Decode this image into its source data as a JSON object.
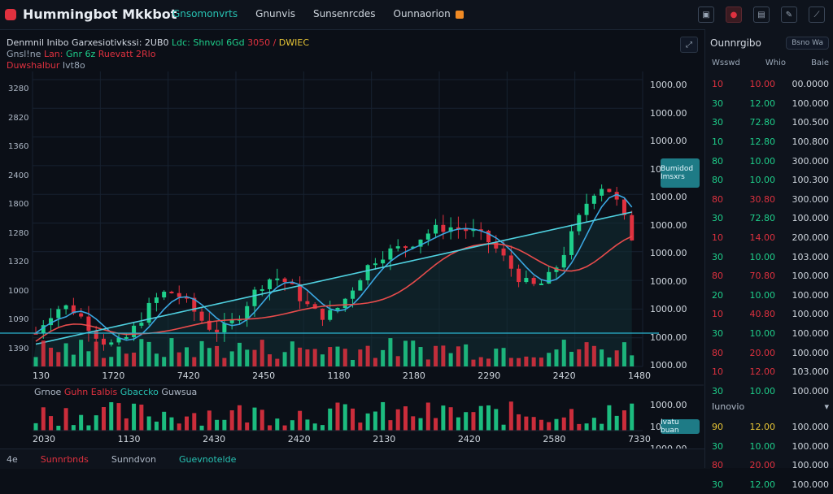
{
  "app": {
    "title": "Hummingbot Mkkbot"
  },
  "nav": {
    "tabs": [
      {
        "label": "Gnsomonvrts"
      },
      {
        "label": "Gnunvis"
      },
      {
        "label": "Sunsenrcdes"
      },
      {
        "label": "Ounnaorion"
      }
    ],
    "active_index": 0
  },
  "toolbar": {
    "icons": [
      "settings-icon",
      "record-icon",
      "layout-icon",
      "edit-icon",
      "trend-icon"
    ]
  },
  "chart": {
    "header_line1": "Denmnil Inibo Garxesiotivkssi: 2UB0",
    "header_line1_up": "Ldc: Shnvol 6Gd",
    "header_line1_dn": "3050 /",
    "header_line1_y": "DWIEC",
    "header_line2_muted": "Gnsl!ne",
    "header_line2_dn": "Lan:",
    "header_line2_teal": "Gnr 6z",
    "header_line2_y": "Ruevatt 2Rlo",
    "header_line3_dn": "Duwshalbur",
    "header_line3_muted": "Ivt8o",
    "y_axis": [
      "1000.00",
      "1000.00",
      "1000.00",
      "1000.00",
      "1000.00",
      "1000.00",
      "1000.00",
      "1000.00",
      "1000.00",
      "1000.00",
      "1000.00"
    ],
    "left_axis": [
      "3280",
      "2820",
      "1360",
      "2400",
      "1800",
      "1280",
      "1320",
      "1000",
      "1090",
      "1390"
    ],
    "x_labels": [
      "130",
      "1720",
      "7420",
      "2450",
      "1180",
      "2180",
      "2290",
      "2420",
      "1480"
    ],
    "tag_label": "Bumidod Imsxrs",
    "sub_title_muted": "Grnoe",
    "sub_title_red": "Guhn Ealbis",
    "sub_title_teal": "Gbaccko",
    "sub_title_muted2": "Guwsua",
    "sub_axis": [
      "1000.00",
      "1000.00",
      "1000.00"
    ],
    "sub_x_labels": [
      "2030",
      "1130",
      "2430",
      "2420",
      "2130",
      "2420",
      "2580",
      "7330"
    ],
    "sub_tag_label": "Ivatu buan",
    "bottom_items": [
      {
        "label": "4e",
        "cls": "muted"
      },
      {
        "label": "Sunnrbnds",
        "cls": "red"
      },
      {
        "label": "Sunndvon",
        "cls": "muted"
      },
      {
        "label": "Guevnotelde",
        "cls": "teal"
      }
    ]
  },
  "orderbook": {
    "title": "Ounnrgibo",
    "pill": "Bsno Wa",
    "columns": [
      "Wsswd",
      "Whio",
      "Baie"
    ],
    "rows": [
      {
        "side": "dn",
        "c1": "10",
        "c2": "10.00",
        "c3": "00.0000"
      },
      {
        "side": "up",
        "c1": "30",
        "c2": "12.00",
        "c3": "100.000"
      },
      {
        "side": "up",
        "c1": "30",
        "c2": "72.80",
        "c3": "100.500"
      },
      {
        "side": "up",
        "c1": "10",
        "c2": "12.80",
        "c3": "100.800"
      },
      {
        "side": "up",
        "c1": "80",
        "c2": "10.00",
        "c3": "300.000"
      },
      {
        "side": "up",
        "c1": "80",
        "c2": "10.00",
        "c3": "100.300"
      },
      {
        "side": "dn",
        "c1": "80",
        "c2": "30.80",
        "c3": "300.000"
      },
      {
        "side": "up",
        "c1": "30",
        "c2": "72.80",
        "c3": "100.000"
      },
      {
        "side": "dn",
        "c1": "10",
        "c2": "14.00",
        "c3": "200.000"
      },
      {
        "side": "up",
        "c1": "30",
        "c2": "10.00",
        "c3": "103.000"
      },
      {
        "side": "dn",
        "c1": "80",
        "c2": "70.80",
        "c3": "100.000"
      },
      {
        "side": "up",
        "c1": "20",
        "c2": "10.00",
        "c3": "100.000"
      },
      {
        "side": "dn",
        "c1": "10",
        "c2": "40.80",
        "c3": "100.000"
      },
      {
        "side": "up",
        "c1": "30",
        "c2": "10.00",
        "c3": "100.000"
      },
      {
        "side": "dn",
        "c1": "80",
        "c2": "20.00",
        "c3": "100.000"
      },
      {
        "side": "dn",
        "c1": "10",
        "c2": "12.00",
        "c3": "103.000"
      },
      {
        "side": "up",
        "c1": "30",
        "c2": "10.00",
        "c3": "100.000"
      }
    ],
    "mid_label": "Iunovio",
    "rows_bottom": [
      {
        "side": "y",
        "c1": "90",
        "c2": "12.00",
        "c3": "100.000"
      },
      {
        "side": "up",
        "c1": "30",
        "c2": "10.00",
        "c3": "100.000"
      },
      {
        "side": "dn",
        "c1": "80",
        "c2": "20.00",
        "c3": "100.000"
      },
      {
        "side": "up",
        "c1": "30",
        "c2": "12.00",
        "c3": "100.000"
      }
    ]
  },
  "colors": {
    "up": "#1ecf8b",
    "down": "#e0313f",
    "accent": "#27c2b3",
    "yellow": "#e7c536"
  }
}
